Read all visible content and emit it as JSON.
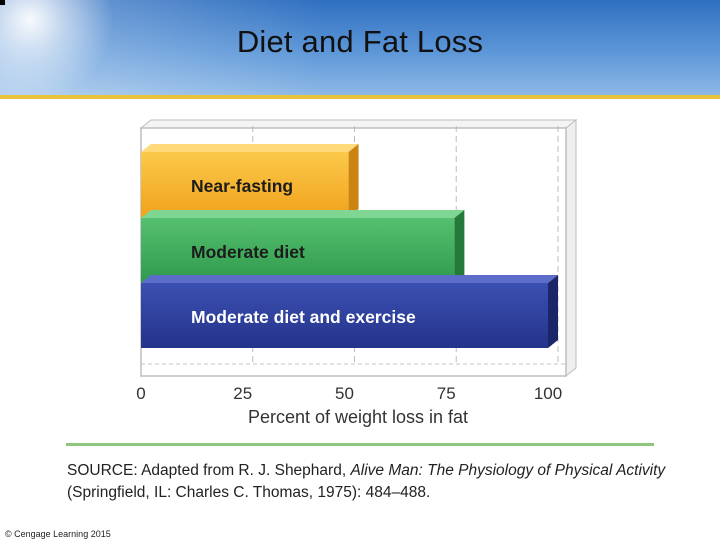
{
  "slide": {
    "title": "Diet and Fat Loss",
    "copyright": "© Cengage Learning 2015"
  },
  "source": {
    "prefix": "SOURCE: Adapted from R. J. Shephard, ",
    "book_title": "Alive Man: The Physiology of Physical Activity",
    "suffix": " (Springfield, IL: Charles C. Thomas, 1975): 484–488."
  },
  "colors": {
    "near_fasting": "#f5a623",
    "moderate_diet": "#3dab5a",
    "diet_exercise": "#2c3f9e",
    "accent_line": "#8fc87c"
  },
  "chart_data": {
    "type": "bar",
    "orientation": "horizontal",
    "categories": [
      "Near-fasting",
      "Moderate diet",
      "Moderate diet and exercise"
    ],
    "values": [
      51,
      77,
      100
    ],
    "xlabel": "Percent of weight loss in fat",
    "xlim": [
      0,
      100
    ],
    "xticks": [
      0,
      25,
      50,
      75,
      100
    ],
    "grid": true
  }
}
